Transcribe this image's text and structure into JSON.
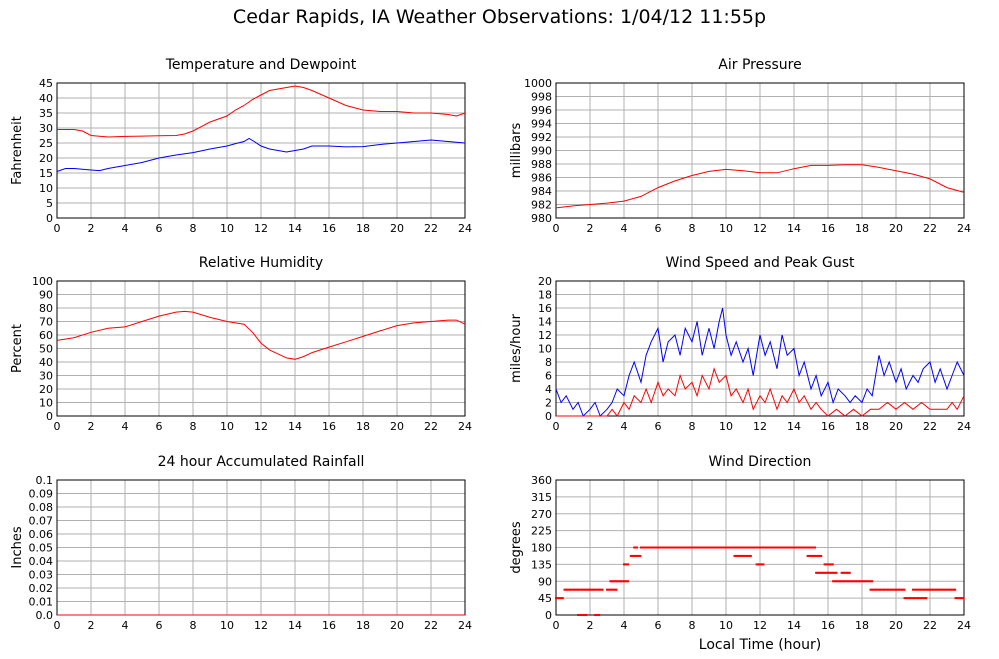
{
  "title": "Cedar Rapids, IA Weather Observations: 1/04/12 11:55p",
  "xlabel_common": "Local Time (hour)",
  "colors": {
    "red": "#ff0000",
    "blue": "#0000ff",
    "grid": "#b0b0b0"
  },
  "chart_data": [
    {
      "id": "temp",
      "type": "line",
      "title": "Temperature and Dewpoint",
      "ylabel": "Fahrenheit",
      "xlim": [
        0,
        24
      ],
      "ylim": [
        0,
        45
      ],
      "xticks": [
        0,
        2,
        4,
        6,
        8,
        10,
        12,
        14,
        16,
        18,
        20,
        22,
        24
      ],
      "yticks": [
        0,
        5,
        10,
        15,
        20,
        25,
        30,
        35,
        40,
        45
      ],
      "series": [
        {
          "color": "#ff0000",
          "x": [
            0,
            1,
            1.5,
            2,
            3,
            4,
            5,
            6,
            7,
            7.5,
            8,
            9,
            10,
            10.5,
            11,
            11.5,
            12,
            12.5,
            13,
            13.5,
            14,
            14.5,
            15,
            16,
            17,
            18,
            19,
            20,
            21,
            22,
            23,
            23.5,
            24
          ],
          "y": [
            29.5,
            29.5,
            29,
            27.5,
            27,
            27.2,
            27.3,
            27.4,
            27.5,
            28,
            29,
            32,
            34,
            36,
            37.5,
            39.5,
            41,
            42.5,
            43,
            43.5,
            44,
            43.5,
            42.5,
            40,
            37.5,
            36,
            35.5,
            35.5,
            35,
            35,
            34.5,
            34,
            35
          ]
        },
        {
          "color": "#0000ff",
          "x": [
            0,
            0.5,
            1,
            2,
            2.5,
            3,
            4,
            5,
            6,
            7,
            8,
            9,
            10,
            10.5,
            11,
            11.3,
            11.6,
            12,
            12.5,
            13,
            13.5,
            14,
            14.5,
            15,
            16,
            17,
            18,
            19,
            20,
            21,
            22,
            23,
            24
          ],
          "y": [
            15.5,
            16.5,
            16.5,
            16,
            15.8,
            16.5,
            17.5,
            18.5,
            20,
            21,
            21.8,
            23,
            24,
            24.8,
            25.5,
            26.5,
            25.5,
            24,
            23,
            22.5,
            22,
            22.5,
            23,
            24,
            24,
            23.7,
            23.8,
            24.5,
            25,
            25.5,
            26,
            25.5,
            25
          ]
        }
      ]
    },
    {
      "id": "pressure",
      "type": "line",
      "title": "Air Pressure",
      "ylabel": "millibars",
      "xlim": [
        0,
        24
      ],
      "ylim": [
        980,
        1000
      ],
      "xticks": [
        0,
        2,
        4,
        6,
        8,
        10,
        12,
        14,
        16,
        18,
        20,
        22,
        24
      ],
      "yticks": [
        980,
        982,
        984,
        986,
        988,
        990,
        992,
        994,
        996,
        998,
        1000
      ],
      "series": [
        {
          "color": "#ff0000",
          "x": [
            0,
            1,
            2,
            3,
            4,
            5,
            6,
            7,
            8,
            9,
            10,
            11,
            12,
            13,
            14,
            15,
            16,
            17,
            18,
            19,
            20,
            21,
            22,
            23,
            24
          ],
          "y": [
            981.5,
            981.8,
            982.0,
            982.2,
            982.5,
            983.2,
            984.5,
            985.5,
            986.3,
            986.9,
            987.2,
            987.0,
            986.7,
            986.7,
            987.3,
            987.8,
            987.8,
            987.9,
            987.9,
            987.5,
            987.0,
            986.5,
            985.8,
            984.5,
            983.8
          ]
        }
      ]
    },
    {
      "id": "humidity",
      "type": "line",
      "title": "Relative Humidity",
      "ylabel": "Percent",
      "xlim": [
        0,
        24
      ],
      "ylim": [
        0,
        100
      ],
      "xticks": [
        0,
        2,
        4,
        6,
        8,
        10,
        12,
        14,
        16,
        18,
        20,
        22,
        24
      ],
      "yticks": [
        0,
        10,
        20,
        30,
        40,
        50,
        60,
        70,
        80,
        90,
        100
      ],
      "series": [
        {
          "color": "#ff0000",
          "x": [
            0,
            1,
            2,
            3,
            4,
            5,
            6,
            7,
            7.5,
            8,
            9,
            10,
            11,
            11.5,
            12,
            12.5,
            13,
            13.5,
            14,
            14.5,
            15,
            16,
            17,
            18,
            19,
            20,
            21,
            22,
            23,
            23.5,
            24
          ],
          "y": [
            56,
            58,
            62,
            65,
            66,
            70,
            74,
            77,
            77.5,
            77,
            73,
            70,
            68,
            62,
            54,
            49,
            46,
            43,
            42,
            44,
            47,
            51,
            55,
            59,
            63,
            67,
            69,
            70,
            71,
            71,
            68
          ]
        }
      ]
    },
    {
      "id": "wind",
      "type": "line",
      "title": "Wind Speed and Peak Gust",
      "ylabel": "miles/hour",
      "xlim": [
        0,
        24
      ],
      "ylim": [
        0,
        20
      ],
      "xticks": [
        0,
        2,
        4,
        6,
        8,
        10,
        12,
        14,
        16,
        18,
        20,
        22,
        24
      ],
      "yticks": [
        0,
        2,
        4,
        6,
        8,
        10,
        12,
        14,
        16,
        18,
        20
      ],
      "series": [
        {
          "color": "#0000ff",
          "x": [
            0,
            0.3,
            0.6,
            1,
            1.3,
            1.6,
            2,
            2.3,
            2.6,
            3,
            3.3,
            3.6,
            4,
            4.3,
            4.6,
            5,
            5.3,
            5.6,
            6,
            6.3,
            6.6,
            7,
            7.3,
            7.6,
            8,
            8.3,
            8.6,
            9,
            9.3,
            9.6,
            9.8,
            10,
            10.3,
            10.6,
            11,
            11.3,
            11.6,
            12,
            12.3,
            12.6,
            13,
            13.3,
            13.6,
            14,
            14.3,
            14.6,
            15,
            15.3,
            15.6,
            16,
            16.3,
            16.6,
            17,
            17.3,
            17.6,
            18,
            18.3,
            18.6,
            19,
            19.3,
            19.6,
            20,
            20.3,
            20.6,
            21,
            21.3,
            21.6,
            22,
            22.3,
            22.6,
            23,
            23.3,
            23.6,
            24
          ],
          "y": [
            4,
            2,
            3,
            1,
            2,
            0,
            1,
            2,
            0,
            1,
            2,
            4,
            3,
            6,
            8,
            5,
            9,
            11,
            13,
            8,
            11,
            12,
            9,
            13,
            11,
            14,
            9,
            13,
            10,
            14,
            16,
            12,
            9,
            11,
            8,
            10,
            6,
            12,
            9,
            11,
            7,
            12,
            9,
            10,
            6,
            8,
            4,
            6,
            3,
            5,
            2,
            4,
            3,
            2,
            3,
            2,
            4,
            3,
            9,
            6,
            8,
            5,
            7,
            4,
            6,
            5,
            7,
            8,
            5,
            7,
            4,
            6,
            8,
            6
          ]
        },
        {
          "color": "#ff0000",
          "x": [
            0,
            0.5,
            1,
            1.5,
            2,
            2.5,
            3,
            3.3,
            3.6,
            4,
            4.3,
            4.6,
            5,
            5.3,
            5.6,
            6,
            6.3,
            6.6,
            7,
            7.3,
            7.6,
            8,
            8.3,
            8.6,
            9,
            9.3,
            9.6,
            10,
            10.3,
            10.6,
            11,
            11.3,
            11.6,
            12,
            12.3,
            12.6,
            13,
            13.3,
            13.6,
            14,
            14.3,
            14.6,
            15,
            15.3,
            15.6,
            16,
            16.5,
            17,
            17.5,
            18,
            18.5,
            19,
            19.5,
            20,
            20.5,
            21,
            21.5,
            22,
            22.5,
            23,
            23.3,
            23.6,
            24
          ],
          "y": [
            0,
            0,
            0,
            0,
            0,
            0,
            0,
            1,
            0,
            2,
            1,
            3,
            2,
            4,
            2,
            5,
            3,
            4,
            3,
            6,
            4,
            5,
            3,
            6,
            4,
            7,
            5,
            6,
            3,
            4,
            2,
            4,
            1,
            3,
            2,
            4,
            1,
            3,
            2,
            4,
            2,
            3,
            1,
            2,
            1,
            0,
            1,
            0,
            1,
            0,
            1,
            1,
            2,
            1,
            2,
            1,
            2,
            1,
            1,
            1,
            2,
            1,
            3
          ]
        }
      ]
    },
    {
      "id": "rain",
      "type": "line",
      "title": "24 hour Accumulated Rainfall",
      "ylabel": "Inches",
      "xlim": [
        0,
        24
      ],
      "ylim": [
        0,
        0.1
      ],
      "xticks": [
        0,
        2,
        4,
        6,
        8,
        10,
        12,
        14,
        16,
        18,
        20,
        22,
        24
      ],
      "yticks": [
        0.0,
        0.01,
        0.02,
        0.03,
        0.04,
        0.05,
        0.06,
        0.07,
        0.08,
        0.09,
        0.1
      ],
      "ytick_labels": [
        "0.0",
        "0.01",
        "0.02",
        "0.03",
        "0.04",
        "0.05",
        "0.06",
        "0.07",
        "0.08",
        "0.09",
        "0.1"
      ],
      "series": [
        {
          "color": "#ff0000",
          "x": [
            0,
            24
          ],
          "y": [
            0,
            0
          ]
        }
      ]
    },
    {
      "id": "direction",
      "type": "scatter",
      "title": "Wind Direction",
      "ylabel": "degrees",
      "xlabel": "Local Time (hour)",
      "xlim": [
        0,
        24
      ],
      "ylim": [
        0,
        360
      ],
      "xticks": [
        0,
        2,
        4,
        6,
        8,
        10,
        12,
        14,
        16,
        18,
        20,
        22,
        24
      ],
      "yticks": [
        0,
        45,
        90,
        135,
        180,
        225,
        270,
        315,
        360
      ],
      "points": [
        {
          "x_range": [
            0.0,
            0.4
          ],
          "y": 45
        },
        {
          "x_range": [
            0.5,
            2.8
          ],
          "y": 67.5
        },
        {
          "x_range": [
            1.3,
            1.8
          ],
          "y": 0
        },
        {
          "x_range": [
            2.3,
            2.6
          ],
          "y": 0
        },
        {
          "x_range": [
            3.0,
            3.6
          ],
          "y": 67.5
        },
        {
          "x_range": [
            3.2,
            4.3
          ],
          "y": 90
        },
        {
          "x_range": [
            4.0,
            4.3
          ],
          "y": 135
        },
        {
          "x_range": [
            4.4,
            5.0
          ],
          "y": 157.5
        },
        {
          "x_range": [
            4.6,
            4.8
          ],
          "y": 180
        },
        {
          "x_range": [
            5.0,
            15.3
          ],
          "y": 180
        },
        {
          "x_range": [
            10.5,
            11.5
          ],
          "y": 157.5
        },
        {
          "x_range": [
            11.8,
            12.2
          ],
          "y": 135
        },
        {
          "x_range": [
            14.8,
            15.6
          ],
          "y": 157.5
        },
        {
          "x_range": [
            15.3,
            16.5
          ],
          "y": 112.5
        },
        {
          "x_range": [
            15.8,
            16.3
          ],
          "y": 135
        },
        {
          "x_range": [
            16.3,
            17.8
          ],
          "y": 90
        },
        {
          "x_range": [
            16.8,
            17.3
          ],
          "y": 112.5
        },
        {
          "x_range": [
            17.8,
            18.6
          ],
          "y": 90
        },
        {
          "x_range": [
            18.5,
            20.5
          ],
          "y": 67.5
        },
        {
          "x_range": [
            20.5,
            21.8
          ],
          "y": 45
        },
        {
          "x_range": [
            21.0,
            23.5
          ],
          "y": 67.5
        },
        {
          "x_range": [
            23.5,
            24.0
          ],
          "y": 45
        }
      ]
    }
  ]
}
